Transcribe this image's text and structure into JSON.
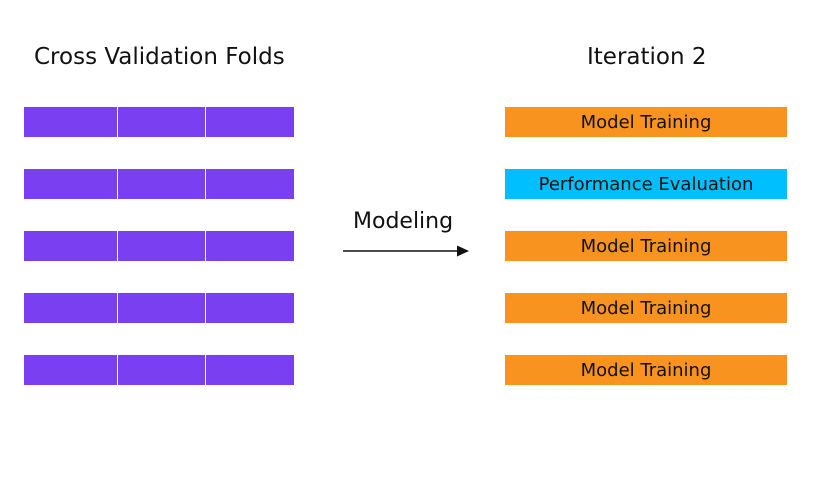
{
  "left_panel": {
    "title": "Cross Validation Folds",
    "fold_color": "#7b3ff2",
    "folds": [
      {
        "segments": 3
      },
      {
        "segments": 3
      },
      {
        "segments": 3
      },
      {
        "segments": 3
      },
      {
        "segments": 3
      }
    ]
  },
  "arrow": {
    "label": "Modeling"
  },
  "right_panel": {
    "title": "Iteration 2",
    "rows": [
      {
        "label": "Model Training",
        "color": "#f7931e"
      },
      {
        "label": "Performance Evaluation",
        "color": "#00bfff"
      },
      {
        "label": "Model Training",
        "color": "#f7931e"
      },
      {
        "label": "Model Training",
        "color": "#f7931e"
      },
      {
        "label": "Model Training",
        "color": "#f7931e"
      }
    ]
  }
}
